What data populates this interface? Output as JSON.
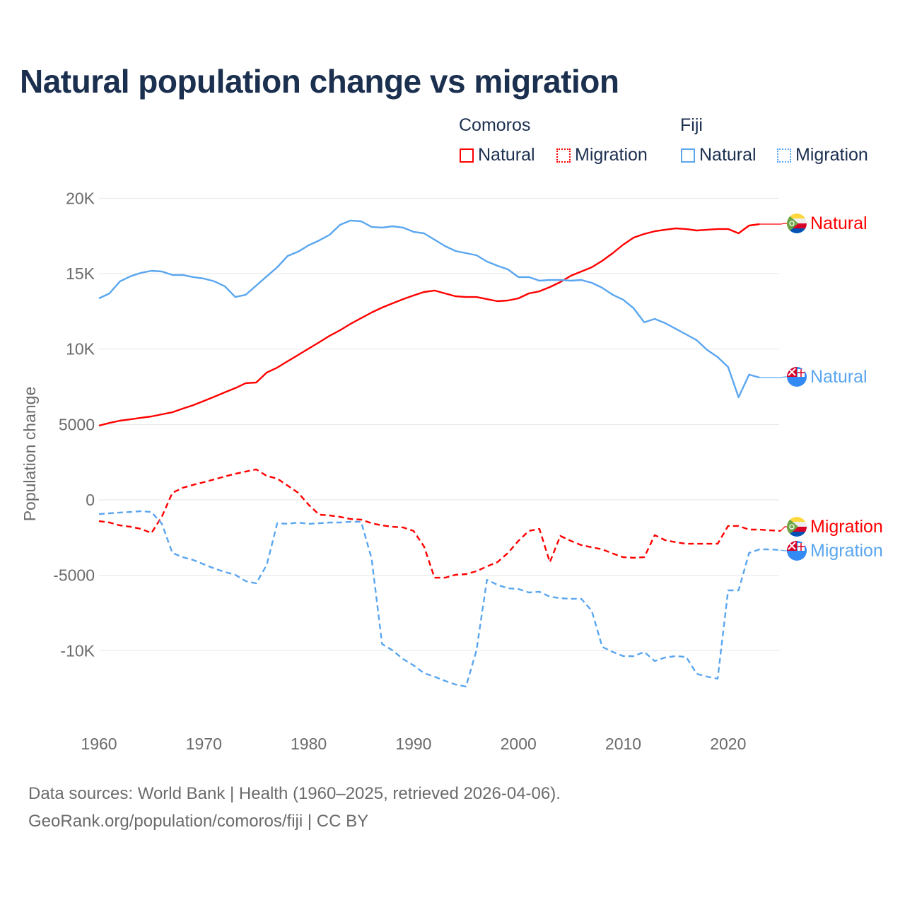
{
  "title": "Natural population change vs migration",
  "legend": {
    "groups": [
      {
        "name": "Comoros",
        "items": [
          "Natural",
          "Migration"
        ],
        "color": "#ff0000"
      },
      {
        "name": "Fiji",
        "items": [
          "Natural",
          "Migration"
        ],
        "color": "#5aa6ef"
      }
    ]
  },
  "footer": {
    "line1": "Data sources: World Bank | Health (1960–2025, retrieved 2026-04-06).",
    "line2": "GeoRank.org/population/comoros/fiji | CC BY"
  },
  "chart_data": {
    "type": "line",
    "title": "Natural population change vs migration",
    "xlabel": "",
    "ylabel": "Population change",
    "xlim": [
      1960,
      2025
    ],
    "ylim": [
      -14000,
      21000
    ],
    "grid": true,
    "legend_placement": "top-right",
    "x_ticks": [
      1960,
      1970,
      1980,
      1990,
      2000,
      2010,
      2020
    ],
    "x_tick_labels": [
      "1960",
      "1970",
      "1980",
      "1990",
      "2000",
      "2010",
      "2020"
    ],
    "y_ticks": [
      20000,
      15000,
      10000,
      5000,
      0,
      -5000,
      -10000
    ],
    "y_tick_labels": [
      "20K",
      "15K",
      "10K",
      "5000",
      "0",
      "-5000",
      "-10K"
    ],
    "series": [
      {
        "name": "Comoros Natural",
        "end_label": "Natural",
        "color": "#ff0000",
        "dash": false,
        "flag": "comoros",
        "start": 1960,
        "values": [
          4920,
          5100,
          5250,
          5340,
          5440,
          5530,
          5670,
          5810,
          6050,
          6280,
          6560,
          6840,
          7130,
          7410,
          7740,
          7780,
          8440,
          8770,
          9190,
          9610,
          10030,
          10450,
          10880,
          11250,
          11670,
          12050,
          12420,
          12750,
          13030,
          13310,
          13550,
          13780,
          13880,
          13690,
          13500,
          13450,
          13450,
          13310,
          13170,
          13220,
          13360,
          13690,
          13830,
          14110,
          14440,
          14860,
          15140,
          15420,
          15850,
          16360,
          16920,
          17390,
          17630,
          17810,
          17910,
          18000,
          17960,
          17860,
          17910,
          17960,
          17960,
          17670,
          18190,
          18280
        ]
      },
      {
        "name": "Comoros Migration",
        "end_label": "Migration",
        "color": "#ff0000",
        "dash": true,
        "flag": "comoros",
        "start": 1960,
        "values": [
          -1410,
          -1500,
          -1690,
          -1780,
          -1920,
          -2200,
          -1100,
          470,
          800,
          1000,
          1170,
          1360,
          1550,
          1730,
          1880,
          2020,
          1590,
          1410,
          940,
          470,
          -330,
          -980,
          -1030,
          -1130,
          -1270,
          -1310,
          -1550,
          -1690,
          -1780,
          -1830,
          -2060,
          -3090,
          -5160,
          -5160,
          -4970,
          -4920,
          -4730,
          -4410,
          -4130,
          -3520,
          -2720,
          -2060,
          -1920,
          -4130,
          -2390,
          -2720,
          -3000,
          -3140,
          -3280,
          -3560,
          -3800,
          -3840,
          -3800,
          -2340,
          -2670,
          -2810,
          -2910,
          -2910,
          -2910,
          -2910,
          -1730,
          -1730,
          -1970,
          -1970,
          -2020,
          -2060
        ]
      },
      {
        "name": "Fiji Natural",
        "end_label": "Natural",
        "color": "#5aa6ef",
        "dash": false,
        "flag": "fiji",
        "start": 1960,
        "values": [
          13360,
          13690,
          14490,
          14820,
          15050,
          15190,
          15140,
          14910,
          14910,
          14770,
          14670,
          14490,
          14160,
          13450,
          13600,
          14210,
          14820,
          15420,
          16170,
          16460,
          16880,
          17200,
          17580,
          18240,
          18520,
          18470,
          18100,
          18050,
          18140,
          18050,
          17770,
          17670,
          17250,
          16830,
          16500,
          16360,
          16220,
          15800,
          15520,
          15280,
          14770,
          14770,
          14530,
          14580,
          14580,
          14530,
          14580,
          14390,
          14060,
          13600,
          13270,
          12700,
          11770,
          12000,
          11720,
          11350,
          10970,
          10590,
          9940,
          9470,
          8810,
          6800,
          8300,
          8110
        ]
      },
      {
        "name": "Fiji Migration",
        "end_label": "Migration",
        "color": "#5aa6ef",
        "dash": true,
        "flag": "fiji",
        "start": 1960,
        "values": [
          -940,
          -890,
          -840,
          -800,
          -750,
          -800,
          -1590,
          -3520,
          -3800,
          -3990,
          -4270,
          -4550,
          -4780,
          -4970,
          -5390,
          -5530,
          -4310,
          -1550,
          -1590,
          -1500,
          -1590,
          -1550,
          -1500,
          -1500,
          -1450,
          -1450,
          -3890,
          -9560,
          -9980,
          -10550,
          -10970,
          -11490,
          -11720,
          -12000,
          -12240,
          -12380,
          -9980,
          -5300,
          -5630,
          -5860,
          -5910,
          -6140,
          -6090,
          -6420,
          -6520,
          -6560,
          -6560,
          -7360,
          -9750,
          -10080,
          -10360,
          -10360,
          -10080,
          -10690,
          -10450,
          -10360,
          -10410,
          -11530,
          -11720,
          -11860,
          -6000,
          -6000,
          -3520,
          -3280,
          -3280,
          -3330
        ]
      }
    ]
  }
}
